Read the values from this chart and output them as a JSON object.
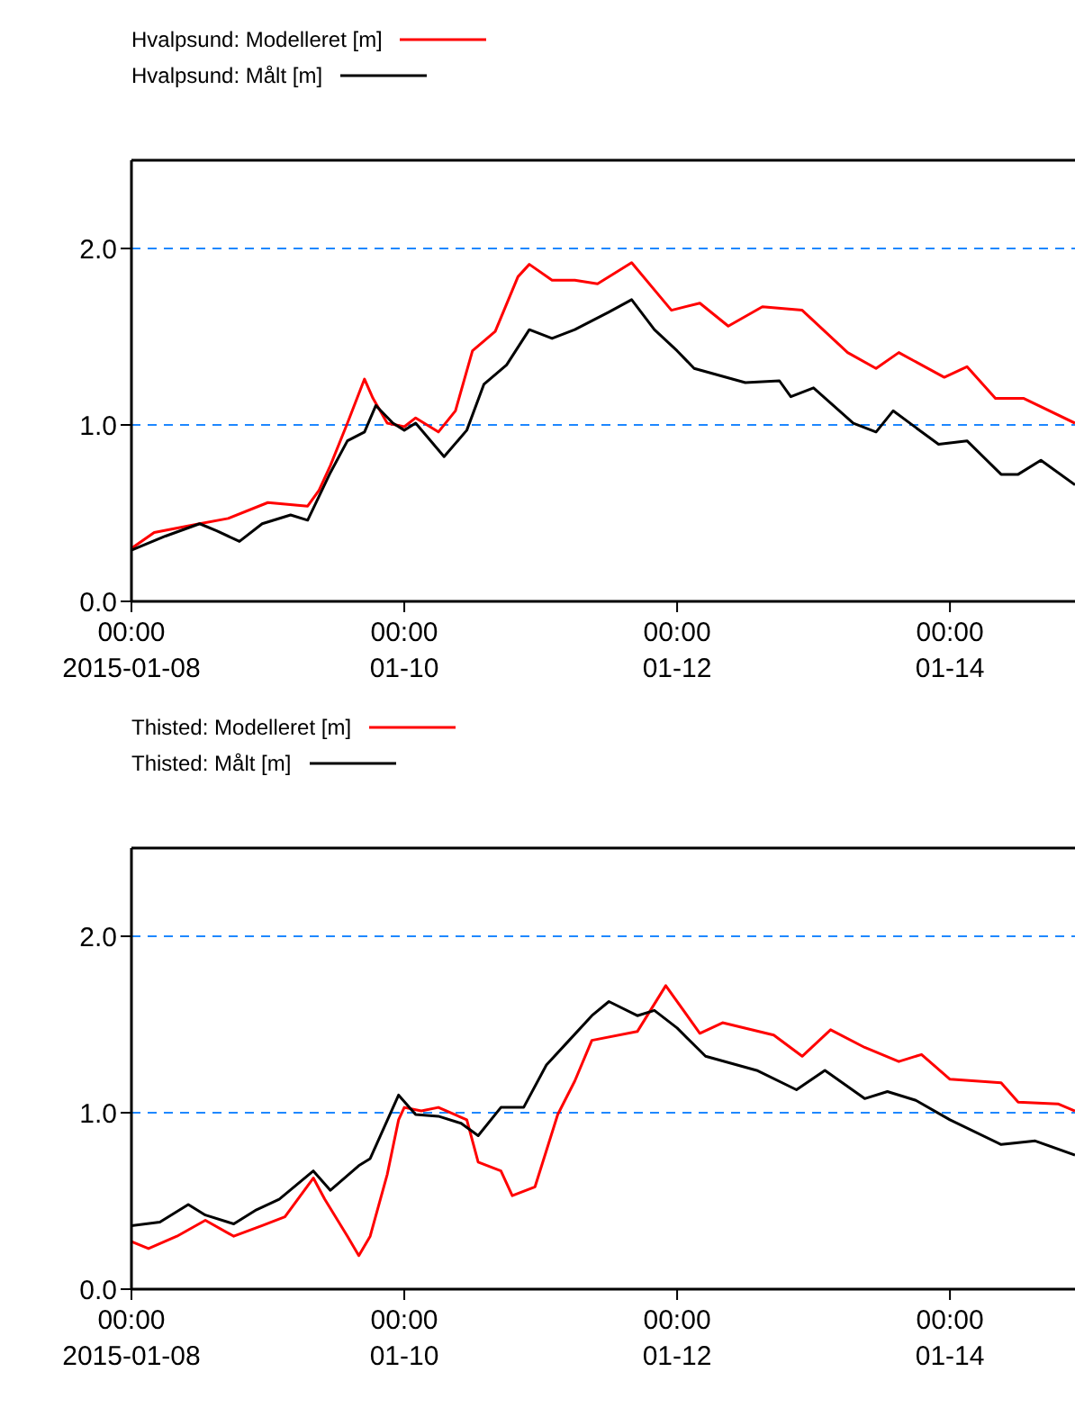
{
  "chart_data": [
    {
      "type": "line",
      "legend": "top left",
      "grid": true,
      "line_style": "solid",
      "marker": "none",
      "xlim": [
        "2015-01-08T00:00",
        "2015-01-14T22:00"
      ],
      "xticks": [
        {
          "value": "2015-01-08T00:00",
          "label": "00:00\n2015-01-08"
        },
        {
          "value": "2015-01-10T00:00",
          "label": "00:00\n01-10"
        },
        {
          "value": "2015-01-12T00:00",
          "label": "00:00\n01-12"
        },
        {
          "value": "2015-01-14T00:00",
          "label": "00:00\n01-14"
        }
      ],
      "ylim": [
        0,
        2.5
      ],
      "yticks": [
        {
          "value": 0,
          "label": "0.0"
        },
        {
          "value": 1,
          "label": "1.0"
        },
        {
          "value": 2,
          "label": "2.0"
        }
      ],
      "series": [
        {
          "name": "Hvalpsund: Modelleret [m]",
          "color": "#ff0000",
          "x": [
            "2015-01-08T00:00",
            "2015-01-08T04:00",
            "2015-01-08T12:00",
            "2015-01-08T17:00",
            "2015-01-09T00:00",
            "2015-01-09T07:00",
            "2015-01-09T09:00",
            "2015-01-09T11:00",
            "2015-01-09T14:00",
            "2015-01-09T17:00",
            "2015-01-09T18:30",
            "2015-01-09T21:00",
            "2015-01-10T00:00",
            "2015-01-10T02:00",
            "2015-01-10T06:00",
            "2015-01-10T09:00",
            "2015-01-10T12:00",
            "2015-01-10T16:00",
            "2015-01-10T20:00",
            "2015-01-10T22:00",
            "2015-01-11T02:00",
            "2015-01-11T06:00",
            "2015-01-11T10:00",
            "2015-01-11T16:00",
            "2015-01-11T23:00",
            "2015-01-12T04:00",
            "2015-01-12T09:00",
            "2015-01-12T15:00",
            "2015-01-12T22:00",
            "2015-01-13T06:00",
            "2015-01-13T11:00",
            "2015-01-13T15:00",
            "2015-01-13T23:00",
            "2015-01-14T03:00",
            "2015-01-14T08:00",
            "2015-01-14T13:00",
            "2015-01-14T22:00"
          ],
          "values": [
            0.3,
            0.39,
            0.44,
            0.47,
            0.56,
            0.54,
            0.63,
            0.77,
            1.01,
            1.26,
            1.15,
            1.01,
            0.99,
            1.04,
            0.96,
            1.08,
            1.42,
            1.53,
            1.84,
            1.91,
            1.82,
            1.82,
            1.8,
            1.92,
            1.65,
            1.69,
            1.56,
            1.67,
            1.65,
            1.41,
            1.32,
            1.41,
            1.27,
            1.33,
            1.15,
            1.15,
            1.01
          ]
        },
        {
          "name": "Hvalpsund: Målt [m]",
          "color": "#000000",
          "x": [
            "2015-01-08T00:00",
            "2015-01-08T06:00",
            "2015-01-08T12:00",
            "2015-01-08T15:00",
            "2015-01-08T19:00",
            "2015-01-08T23:00",
            "2015-01-09T04:00",
            "2015-01-09T07:00",
            "2015-01-09T11:00",
            "2015-01-09T14:00",
            "2015-01-09T17:00",
            "2015-01-09T19:00",
            "2015-01-09T22:00",
            "2015-01-10T00:00",
            "2015-01-10T02:00",
            "2015-01-10T07:00",
            "2015-01-10T11:00",
            "2015-01-10T14:00",
            "2015-01-10T18:00",
            "2015-01-10T22:00",
            "2015-01-11T02:00",
            "2015-01-11T06:00",
            "2015-01-11T12:00",
            "2015-01-11T16:00",
            "2015-01-11T20:00",
            "2015-01-12T00:00",
            "2015-01-12T03:00",
            "2015-01-12T12:00",
            "2015-01-12T18:00",
            "2015-01-12T20:00",
            "2015-01-13T00:00",
            "2015-01-13T07:00",
            "2015-01-13T11:00",
            "2015-01-13T14:00",
            "2015-01-13T22:00",
            "2015-01-14T03:00",
            "2015-01-14T09:00",
            "2015-01-14T12:00",
            "2015-01-14T16:00",
            "2015-01-14T22:00"
          ],
          "values": [
            0.29,
            0.37,
            0.44,
            0.4,
            0.34,
            0.44,
            0.49,
            0.46,
            0.73,
            0.91,
            0.96,
            1.11,
            1.01,
            0.97,
            1.01,
            0.82,
            0.97,
            1.23,
            1.34,
            1.54,
            1.49,
            1.54,
            1.64,
            1.71,
            1.54,
            1.42,
            1.32,
            1.24,
            1.25,
            1.16,
            1.21,
            1.01,
            0.96,
            1.08,
            0.89,
            0.91,
            0.72,
            0.72,
            0.8,
            0.66
          ]
        }
      ]
    },
    {
      "type": "line",
      "legend": "top left",
      "grid": true,
      "line_style": "solid",
      "marker": "none",
      "xlim": [
        "2015-01-08T00:00",
        "2015-01-14T22:00"
      ],
      "xticks": [
        {
          "value": "2015-01-08T00:00",
          "label": "00:00\n2015-01-08"
        },
        {
          "value": "2015-01-10T00:00",
          "label": "00:00\n01-10"
        },
        {
          "value": "2015-01-12T00:00",
          "label": "00:00\n01-12"
        },
        {
          "value": "2015-01-14T00:00",
          "label": "00:00\n01-14"
        }
      ],
      "ylim": [
        0,
        2.5
      ],
      "yticks": [
        {
          "value": 0,
          "label": "0.0"
        },
        {
          "value": 1,
          "label": "1.0"
        },
        {
          "value": 2,
          "label": "2.0"
        }
      ],
      "series": [
        {
          "name": "Thisted: Modelleret [m]",
          "color": "#ff0000",
          "x": [
            "2015-01-08T00:00",
            "2015-01-08T03:00",
            "2015-01-08T08:00",
            "2015-01-08T13:00",
            "2015-01-08T18:00",
            "2015-01-08T23:00",
            "2015-01-09T03:00",
            "2015-01-09T08:00",
            "2015-01-09T10:00",
            "2015-01-09T14:00",
            "2015-01-09T16:00",
            "2015-01-09T18:00",
            "2015-01-09T21:00",
            "2015-01-09T23:00",
            "2015-01-10T00:00",
            "2015-01-10T03:00",
            "2015-01-10T06:00",
            "2015-01-10T11:00",
            "2015-01-10T13:00",
            "2015-01-10T17:00",
            "2015-01-10T19:00",
            "2015-01-10T23:00",
            "2015-01-11T03:00",
            "2015-01-11T06:00",
            "2015-01-11T09:00",
            "2015-01-11T17:00",
            "2015-01-11T22:00",
            "2015-01-12T04:00",
            "2015-01-12T08:00",
            "2015-01-12T17:00",
            "2015-01-12T22:00",
            "2015-01-13T03:00",
            "2015-01-13T09:00",
            "2015-01-13T15:00",
            "2015-01-13T19:00",
            "2015-01-14T00:00",
            "2015-01-14T09:00",
            "2015-01-14T12:00",
            "2015-01-14T19:00",
            "2015-01-14T22:00"
          ],
          "values": [
            0.27,
            0.23,
            0.3,
            0.39,
            0.3,
            0.36,
            0.41,
            0.63,
            0.51,
            0.3,
            0.19,
            0.3,
            0.65,
            0.96,
            1.03,
            1.01,
            1.03,
            0.96,
            0.72,
            0.67,
            0.53,
            0.58,
            0.99,
            1.18,
            1.41,
            1.46,
            1.72,
            1.45,
            1.51,
            1.44,
            1.32,
            1.47,
            1.37,
            1.29,
            1.33,
            1.19,
            1.17,
            1.06,
            1.05,
            1.01
          ]
        },
        {
          "name": "Thisted: Målt [m]",
          "color": "#000000",
          "x": [
            "2015-01-08T00:00",
            "2015-01-08T05:00",
            "2015-01-08T10:00",
            "2015-01-08T13:00",
            "2015-01-08T18:00",
            "2015-01-08T22:00",
            "2015-01-09T02:00",
            "2015-01-09T08:00",
            "2015-01-09T11:00",
            "2015-01-09T16:00",
            "2015-01-09T18:00",
            "2015-01-09T23:00",
            "2015-01-10T02:00",
            "2015-01-10T06:00",
            "2015-01-10T10:00",
            "2015-01-10T13:00",
            "2015-01-10T17:00",
            "2015-01-10T21:00",
            "2015-01-11T01:00",
            "2015-01-11T05:00",
            "2015-01-11T09:00",
            "2015-01-11T12:00",
            "2015-01-11T17:00",
            "2015-01-11T20:00",
            "2015-01-12T00:00",
            "2015-01-12T05:00",
            "2015-01-12T14:00",
            "2015-01-12T21:00",
            "2015-01-13T02:00",
            "2015-01-13T09:00",
            "2015-01-13T13:00",
            "2015-01-13T18:00",
            "2015-01-14T00:00",
            "2015-01-14T09:00",
            "2015-01-14T15:00",
            "2015-01-14T22:00"
          ],
          "values": [
            0.36,
            0.38,
            0.48,
            0.42,
            0.37,
            0.45,
            0.51,
            0.67,
            0.56,
            0.7,
            0.74,
            1.1,
            0.99,
            0.98,
            0.94,
            0.87,
            1.03,
            1.03,
            1.27,
            1.41,
            1.55,
            1.63,
            1.55,
            1.58,
            1.48,
            1.32,
            1.24,
            1.13,
            1.24,
            1.08,
            1.12,
            1.07,
            0.96,
            0.82,
            0.84,
            0.76
          ]
        }
      ]
    }
  ]
}
